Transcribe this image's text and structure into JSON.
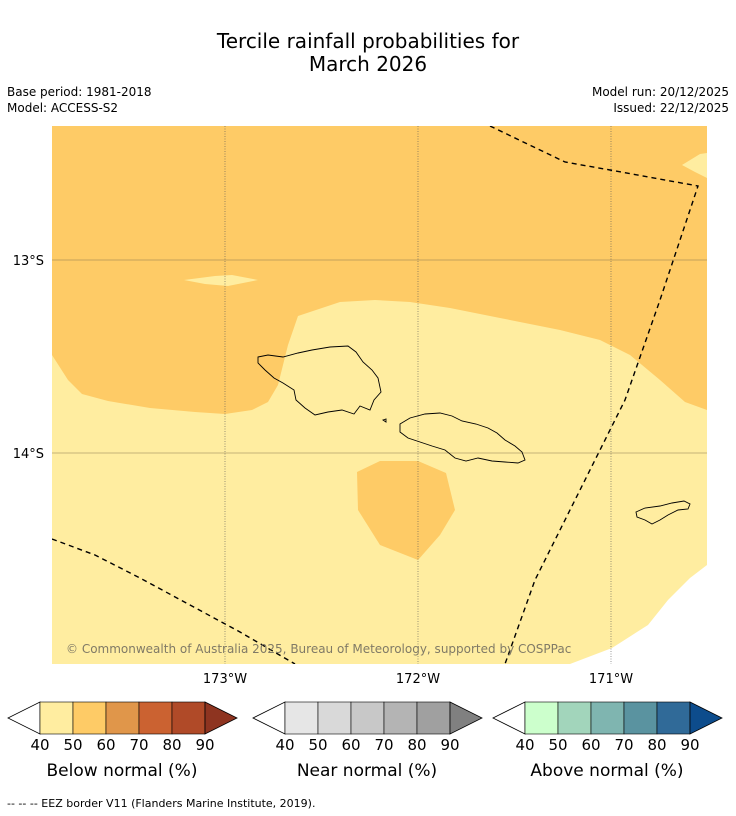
{
  "title_line1": "Tercile rainfall probabilities for",
  "title_line2": "March 2026",
  "base_period": "Base period: 1981-2018",
  "model": "Model: ACCESS-S2",
  "model_run": "Model run: 20/12/2025",
  "issued": "Issued: 22/12/2025",
  "map": {
    "lat_labels": [
      "13°S",
      "14°S"
    ],
    "lon_labels": [
      "173°W",
      "172°W",
      "171°W"
    ],
    "copyright": "© Commonwealth of Australia 2025, Bureau of Meteorology, supported by COSPPac",
    "colors": {
      "below_40_50": "#ffeda0",
      "below_50_60": "#fecb66",
      "water_edge": "#ffffff"
    }
  },
  "colorbars": [
    {
      "label": "Below normal (%)",
      "ticks": [
        "40",
        "50",
        "60",
        "70",
        "80",
        "90"
      ],
      "colors": [
        "#ffeda0",
        "#fecb66",
        "#e0964a",
        "#cb6231",
        "#b04a28",
        "#8e3420"
      ]
    },
    {
      "label": "Near normal (%)",
      "ticks": [
        "40",
        "50",
        "60",
        "70",
        "80",
        "90"
      ],
      "colors": [
        "#e6e6e6",
        "#d9d9d9",
        "#c8c8c8",
        "#b4b4b4",
        "#a0a0a0",
        "#808080"
      ]
    },
    {
      "label": "Above normal (%)",
      "ticks": [
        "40",
        "50",
        "60",
        "70",
        "80",
        "90"
      ],
      "colors": [
        "#ccffcc",
        "#a2d5bb",
        "#7fb5b0",
        "#5a93a0",
        "#306a98",
        "#0d4c8c"
      ]
    }
  ],
  "footer": "--  --  -- EEZ border V11 (Flanders Marine Institute, 2019)."
}
